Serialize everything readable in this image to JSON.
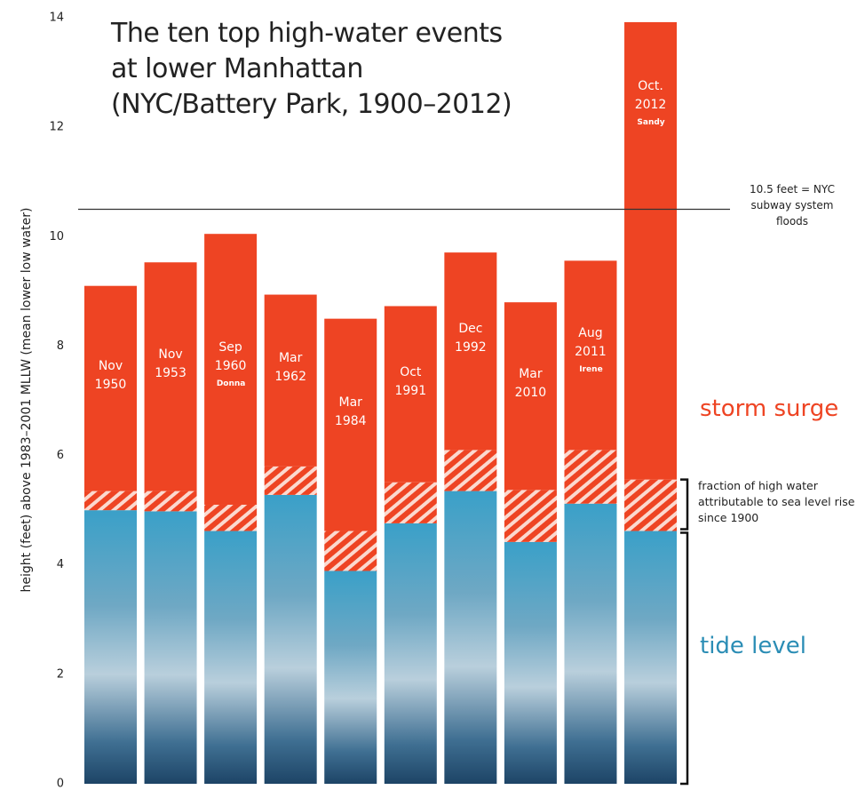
{
  "chart_data": {
    "type": "stacked-bar",
    "title": "The ten top high-water events at lower Manhattan (NYC/Battery Park, 1900–2012)",
    "y_label": "height (feet) above 1983–2001 MLLW (mean lower low water)",
    "categories": [
      "Nov 1950",
      "Nov 1953",
      "Sep 1960",
      "Mar 1962",
      "Mar 1984",
      "Oct 1991",
      "Dec 1992",
      "Mar 2010",
      "Aug 2011",
      "Oct. 2012"
    ],
    "storm_names": [
      null,
      null,
      "Donna",
      null,
      null,
      null,
      null,
      null,
      "Irene",
      "Sandy"
    ],
    "series": [
      {
        "name": "tide level",
        "color": "#2b8db5",
        "values": [
          5.0,
          4.98,
          4.62,
          5.28,
          3.89,
          4.76,
          5.35,
          4.42,
          5.12,
          4.62
        ]
      },
      {
        "name": "fraction of high water attributable to sea level rise since 1900",
        "color": "#ee4423",
        "values": [
          0.35,
          0.37,
          0.48,
          0.52,
          0.73,
          0.75,
          0.75,
          0.95,
          0.98,
          0.94
        ]
      },
      {
        "name": "storm surge",
        "color": "#ee4423",
        "values": [
          3.75,
          4.18,
          4.95,
          3.14,
          3.88,
          3.22,
          3.61,
          3.43,
          3.46,
          8.36
        ]
      }
    ],
    "threshold": {
      "value": 10.5,
      "label": "10.5 feet = NYC subway system floods"
    },
    "ylim": [
      0,
      14
    ],
    "yticks": [
      0,
      2,
      4,
      6,
      8,
      10,
      12,
      14
    ],
    "grid": false
  }
}
